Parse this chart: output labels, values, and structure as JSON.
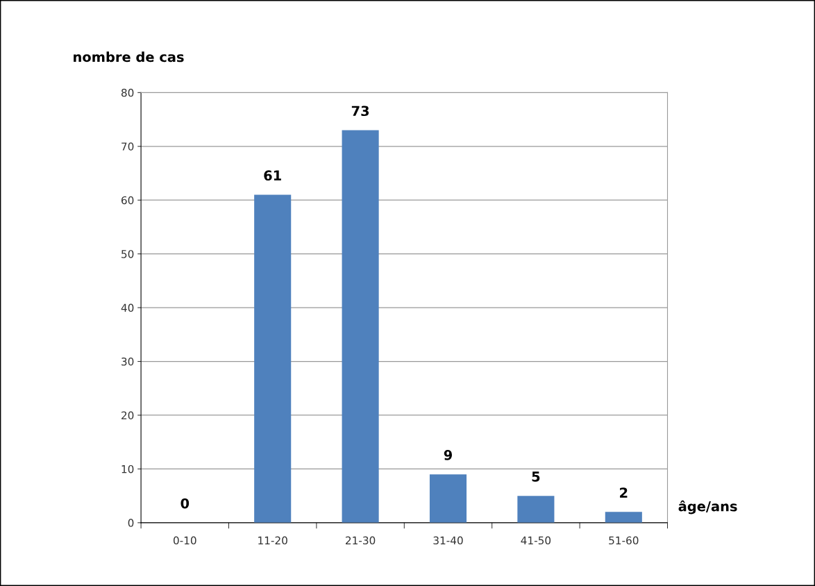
{
  "chart_data": {
    "type": "bar",
    "xlabel": "âge/ans",
    "ylabel": "nombre de cas",
    "categories": [
      "0-10",
      "11-20",
      "21-30",
      "31-40",
      "41-50",
      "51-60"
    ],
    "values": [
      0,
      61,
      73,
      9,
      5,
      2
    ],
    "color": "#4f81bd",
    "ylim": [
      0,
      80
    ],
    "yticks": [
      0,
      10,
      20,
      30,
      40,
      50,
      60,
      70,
      80
    ],
    "grid": "y",
    "data_labels": true
  }
}
